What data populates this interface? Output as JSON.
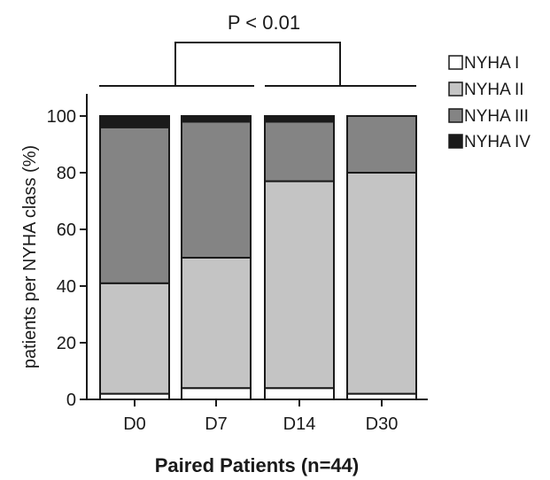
{
  "chart_data": {
    "type": "bar",
    "stacked": true,
    "categories": [
      "D0",
      "D7",
      "D14",
      "D30"
    ],
    "series": [
      {
        "name": "NYHA I",
        "color": "#ffffff",
        "values": [
          2,
          4,
          4,
          2
        ]
      },
      {
        "name": "NYHA II",
        "color": "#c4c4c4",
        "values": [
          39,
          46,
          73,
          78
        ]
      },
      {
        "name": "NYHA III",
        "color": "#848484",
        "values": [
          55,
          48,
          21,
          20
        ]
      },
      {
        "name": "NYHA IV",
        "color": "#1a1a1a",
        "values": [
          4,
          2,
          2,
          0
        ]
      }
    ],
    "xlabel": "Paired Patients (n=44)",
    "ylabel": "patients per NYHA class (%)",
    "ylim": [
      0,
      100
    ],
    "yticks": [
      0,
      20,
      40,
      60,
      80,
      100
    ],
    "legend_position": "top-right",
    "grid": false,
    "annotation": {
      "text": "P < 0.01",
      "groups": [
        [
          "D0",
          "D7"
        ],
        [
          "D14",
          "D30"
        ]
      ]
    }
  }
}
